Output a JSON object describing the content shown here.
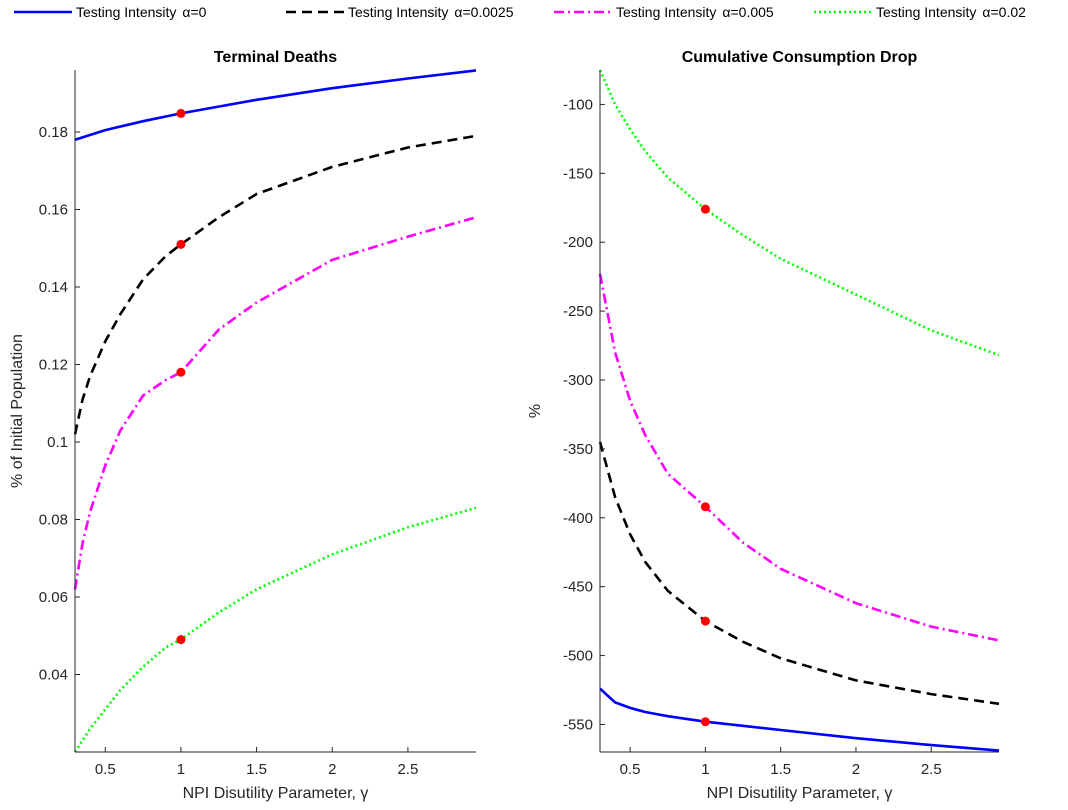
{
  "legend": {
    "entries": [
      {
        "label": "Testing Intensity",
        "alpha_label": "α=0",
        "color": "#0000ff",
        "dash": "solid"
      },
      {
        "label": "Testing Intensity",
        "alpha_label": "α=0.0025",
        "color": "#000000",
        "dash": "dashed"
      },
      {
        "label": "Testing Intensity",
        "alpha_label": "α=0.005",
        "color": "#ff00ff",
        "dash": "dashdot"
      },
      {
        "label": "Testing Intensity",
        "alpha_label": "α=0.02",
        "color": "#00ff00",
        "dash": "dotted"
      }
    ]
  },
  "chart_data": [
    {
      "type": "line",
      "title": "Terminal Deaths",
      "xlabel": "NPI Disutility Parameter, γ",
      "ylabel": "% of Initial Population",
      "xlim": [
        0.3,
        2.95
      ],
      "ylim": [
        0.02,
        0.196
      ],
      "xticks": [
        0.5,
        1,
        1.5,
        2,
        2.5
      ],
      "xtick_labels": [
        "0.5",
        "1",
        "1.5",
        "2",
        "2.5"
      ],
      "yticks": [
        0.04,
        0.06,
        0.08,
        0.1,
        0.12,
        0.14,
        0.16,
        0.18
      ],
      "ytick_labels": [
        "0.04",
        "0.06",
        "0.08",
        "0.1",
        "0.12",
        "0.14",
        "0.16",
        "0.18"
      ],
      "grid": false,
      "series": [
        {
          "name": "Testing Intensity α=0",
          "color": "#0000ff",
          "dash": "solid",
          "x": [
            0.3,
            0.5,
            0.75,
            1.0,
            1.5,
            2.0,
            2.5,
            2.95
          ],
          "y": [
            0.178,
            0.1805,
            0.1828,
            0.1848,
            0.1883,
            0.1913,
            0.1938,
            0.1959
          ]
        },
        {
          "name": "Testing Intensity α=0.0025",
          "color": "#000000",
          "dash": "dashed",
          "x": [
            0.3,
            0.35,
            0.4,
            0.5,
            0.6,
            0.75,
            0.9,
            1.0,
            1.25,
            1.5,
            2.0,
            2.5,
            2.95
          ],
          "y": [
            0.102,
            0.111,
            0.117,
            0.126,
            0.133,
            0.142,
            0.148,
            0.151,
            0.158,
            0.164,
            0.171,
            0.176,
            0.179
          ]
        },
        {
          "name": "Testing Intensity α=0.005",
          "color": "#ff00ff",
          "dash": "dashdot",
          "x": [
            0.3,
            0.35,
            0.4,
            0.5,
            0.6,
            0.75,
            0.9,
            1.0,
            1.25,
            1.5,
            2.0,
            2.5,
            2.95
          ],
          "y": [
            0.062,
            0.074,
            0.082,
            0.094,
            0.103,
            0.112,
            0.116,
            0.118,
            0.129,
            0.136,
            0.147,
            0.153,
            0.158
          ]
        },
        {
          "name": "Testing Intensity α=0.02",
          "color": "#00ff00",
          "dash": "dotted",
          "x": [
            0.3,
            0.4,
            0.5,
            0.6,
            0.75,
            0.9,
            1.0,
            1.25,
            1.5,
            2.0,
            2.5,
            2.95
          ],
          "y": [
            0.02,
            0.026,
            0.031,
            0.036,
            0.042,
            0.047,
            0.049,
            0.056,
            0.062,
            0.071,
            0.078,
            0.083
          ]
        }
      ],
      "markers": {
        "color": "#ff0000",
        "x": [
          1,
          1,
          1,
          1
        ],
        "y": [
          0.1848,
          0.151,
          0.118,
          0.049
        ]
      }
    },
    {
      "type": "line",
      "title": "Cumulative Consumption Drop",
      "xlabel": "NPI Disutility Parameter, γ",
      "ylabel": "%",
      "xlim": [
        0.3,
        2.95
      ],
      "ylim": [
        -570,
        -75
      ],
      "xticks": [
        0.5,
        1,
        1.5,
        2,
        2.5
      ],
      "xtick_labels": [
        "0.5",
        "1",
        "1.5",
        "2",
        "2.5"
      ],
      "yticks": [
        -550,
        -500,
        -450,
        -400,
        -350,
        -300,
        -250,
        -200,
        -150,
        -100
      ],
      "ytick_labels": [
        "-550",
        "-500",
        "-450",
        "-400",
        "-350",
        "-300",
        "-250",
        "-200",
        "-150",
        "-100"
      ],
      "grid": false,
      "series": [
        {
          "name": "Testing Intensity α=0",
          "color": "#0000ff",
          "dash": "solid",
          "x": [
            0.3,
            0.35,
            0.4,
            0.5,
            0.6,
            0.75,
            1.0,
            1.5,
            2.0,
            2.5,
            2.95
          ],
          "y": [
            -524,
            -529,
            -534,
            -538,
            -541,
            -544,
            -548,
            -554,
            -560,
            -565,
            -569
          ]
        },
        {
          "name": "Testing Intensity α=0.0025",
          "color": "#000000",
          "dash": "dashed",
          "x": [
            0.3,
            0.4,
            0.5,
            0.6,
            0.75,
            1.0,
            1.25,
            1.5,
            2.0,
            2.5,
            2.95
          ],
          "y": [
            -345,
            -385,
            -412,
            -432,
            -453,
            -475,
            -490,
            -502,
            -518,
            -528,
            -535
          ]
        },
        {
          "name": "Testing Intensity α=0.005",
          "color": "#ff00ff",
          "dash": "dashdot",
          "x": [
            0.3,
            0.4,
            0.5,
            0.6,
            0.75,
            1.0,
            1.25,
            1.5,
            2.0,
            2.5,
            2.95
          ],
          "y": [
            -223,
            -280,
            -315,
            -340,
            -368,
            -392,
            -418,
            -437,
            -462,
            -479,
            -489
          ]
        },
        {
          "name": "Testing Intensity α=0.02",
          "color": "#00ff00",
          "dash": "dotted",
          "x": [
            0.3,
            0.4,
            0.5,
            0.6,
            0.75,
            1.0,
            1.25,
            1.5,
            2.0,
            2.5,
            2.95
          ],
          "y": [
            -75,
            -100,
            -118,
            -134,
            -153,
            -176,
            -195,
            -212,
            -238,
            -264,
            -282
          ]
        }
      ],
      "markers": {
        "color": "#ff0000",
        "x": [
          1,
          1,
          1,
          1
        ],
        "y": [
          -548,
          -475,
          -392,
          -176
        ]
      }
    }
  ]
}
